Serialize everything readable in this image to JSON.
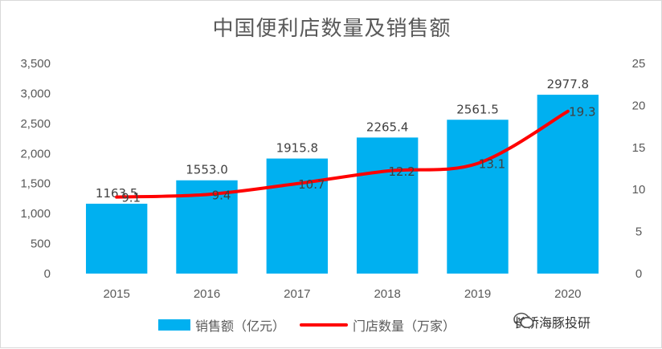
{
  "chart_data": {
    "type": "bar",
    "title": "中国便利店数量及销售额",
    "categories": [
      "2015",
      "2016",
      "2017",
      "2018",
      "2019",
      "2020"
    ],
    "series": [
      {
        "name": "销售额（亿元）",
        "type": "bar",
        "axis": "left",
        "values": [
          1163.5,
          1553.0,
          1915.8,
          2265.4,
          2561.5,
          2977.8
        ],
        "labels": [
          "1163.5",
          "1553.0",
          "1915.8",
          "2265.4",
          "2561.5",
          "2977.8"
        ],
        "color": "#00b0f0"
      },
      {
        "name": "门店数量（万家）",
        "type": "line",
        "axis": "right",
        "values": [
          9.1,
          9.4,
          10.7,
          12.2,
          13.1,
          19.3
        ],
        "labels": [
          "9.1",
          "9.4",
          "10.7",
          "12.2",
          "13.1",
          "19.3"
        ],
        "color": "#ff0000"
      }
    ],
    "left_axis": {
      "ylim": [
        0,
        3500
      ],
      "ticks": [
        "0",
        "500",
        "1,000",
        "1,500",
        "2,000",
        "2,500",
        "3,000",
        "3,500"
      ]
    },
    "right_axis": {
      "ylim": [
        0,
        25
      ],
      "ticks": [
        "0",
        "5",
        "10",
        "15",
        "20",
        "25"
      ]
    },
    "grid": false,
    "legend_position": "bottom"
  },
  "watermark": {
    "text": "长桥海豚投研",
    "icon": "wechat-icon"
  }
}
